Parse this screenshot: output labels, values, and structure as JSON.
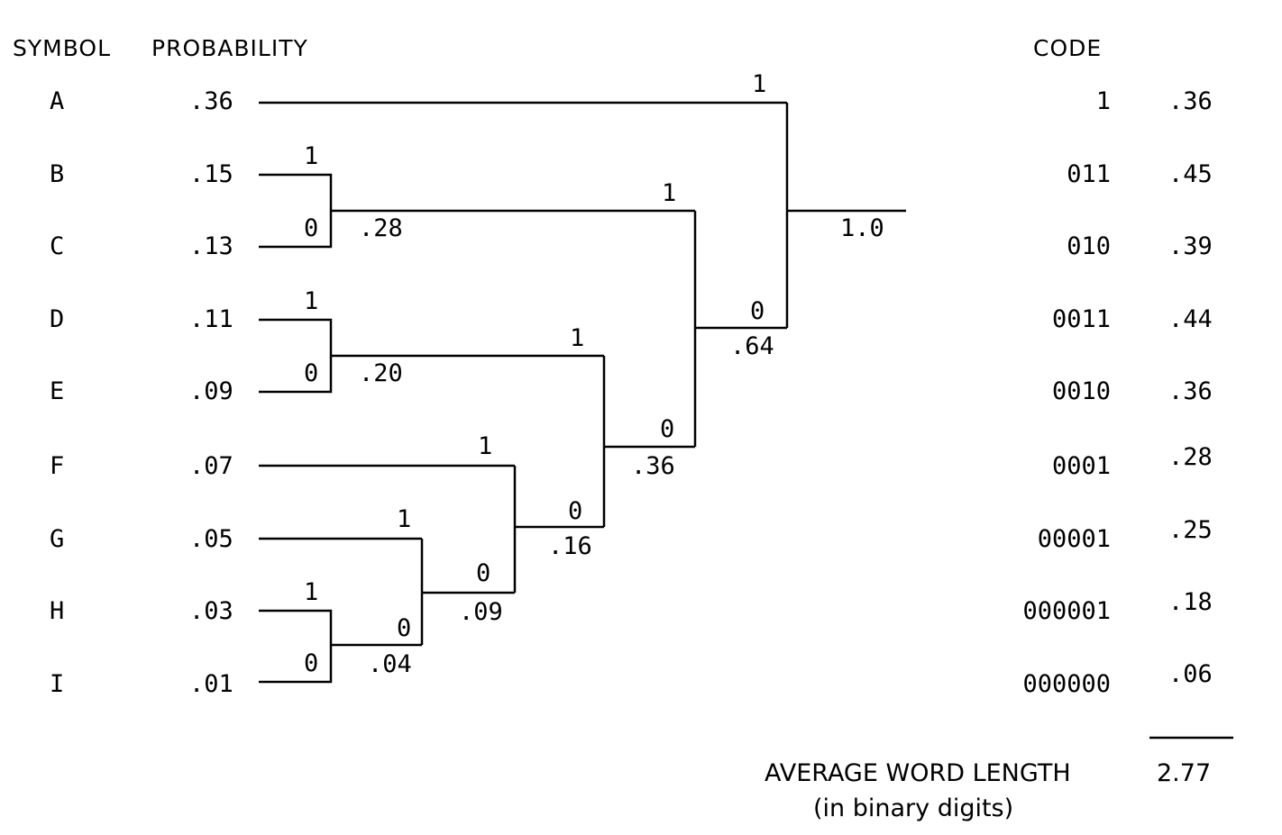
{
  "headers": {
    "symbol": "SYMBOL",
    "probability": "PROBABILITY",
    "code": "CODE"
  },
  "rows": [
    {
      "symbol": "A",
      "probability": ".36",
      "code": "1",
      "product": ".36"
    },
    {
      "symbol": "B",
      "probability": ".15",
      "code": "011",
      "product": ".45"
    },
    {
      "symbol": "C",
      "probability": ".13",
      "code": "010",
      "product": ".39"
    },
    {
      "symbol": "D",
      "probability": ".11",
      "code": "0011",
      "product": ".44"
    },
    {
      "symbol": "E",
      "probability": ".09",
      "code": "0010",
      "product": ".36"
    },
    {
      "symbol": "F",
      "probability": ".07",
      "code": "0001",
      "product": ".28"
    },
    {
      "symbol": "G",
      "probability": ".05",
      "code": "00001",
      "product": ".25"
    },
    {
      "symbol": "H",
      "probability": ".03",
      "code": "000001",
      "product": ".18"
    },
    {
      "symbol": "I",
      "probability": ".01",
      "code": "000000",
      "product": ".06"
    }
  ],
  "tree": {
    "merges": [
      {
        "id": "m-bc",
        "sum": ".28",
        "branch_upper": "1",
        "branch_lower": "0"
      },
      {
        "id": "m-de",
        "sum": ".20",
        "branch_upper": "1",
        "branch_lower": "0"
      },
      {
        "id": "m-hi",
        "sum": ".04",
        "branch_upper": "1",
        "branch_lower": "0"
      },
      {
        "id": "m-ghi",
        "sum": ".09",
        "branch_upper": "1",
        "branch_lower": "0"
      },
      {
        "id": "m-fghi",
        "sum": ".16",
        "branch_upper": "1",
        "branch_lower": "0"
      },
      {
        "id": "m-de-f",
        "sum": ".36",
        "branch_upper": "1",
        "branch_lower": "0"
      },
      {
        "id": "m-bc-d",
        "sum": ".64",
        "branch_upper": "1",
        "branch_lower": "0"
      },
      {
        "id": "m-root",
        "sum": "1.0",
        "branch_upper": "1",
        "branch_lower": "0"
      }
    ]
  },
  "summary": {
    "label": "AVERAGE WORD LENGTH",
    "value": "2.77",
    "unit_note": "(in binary digits)"
  }
}
